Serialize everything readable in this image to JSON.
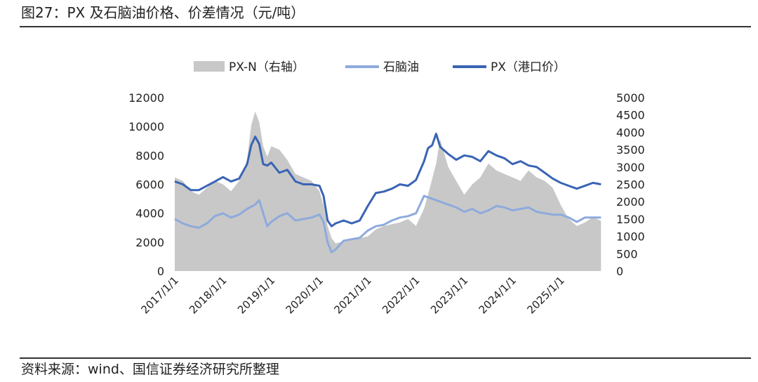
{
  "figure_title": "图27：PX 及石脑油价格、价差情况（元/吨）",
  "source_note": "资料来源：wind、国信证券经济研究所整理",
  "chart_data": {
    "type": "line",
    "title": "",
    "x_tick_labels": [
      "2017/1/1",
      "2018/1/1",
      "2019/1/1",
      "2020/1/1",
      "2021/1/1",
      "2022/1/1",
      "2023/1/1",
      "2024/1/1",
      "2025/1/1"
    ],
    "y_left": {
      "ticks": [
        0,
        2000,
        4000,
        6000,
        8000,
        10000,
        12000
      ],
      "labels": [
        "0",
        "2000",
        "4000",
        "6000",
        "8000",
        "10000",
        "12000"
      ],
      "ylim": [
        0,
        12000
      ]
    },
    "y_right": {
      "ticks": [
        0,
        500,
        1000,
        1500,
        2000,
        2500,
        3000,
        3500,
        4000,
        4500,
        5000
      ],
      "labels": [
        "0",
        "500",
        "1000",
        "1500",
        "2000",
        "2500",
        "3000",
        "3500",
        "4000",
        "4500",
        "5000"
      ],
      "ylim": [
        0,
        5000
      ]
    },
    "legend_position": "top",
    "grid": false,
    "colors": {
      "spread": "#c8c8c8",
      "naphtha": "#8eaadc",
      "px": "#3a64b4"
    },
    "series": [
      {
        "name": "PX-N（右轴）",
        "type": "area",
        "axis": "right",
        "x": [
          "2017-01",
          "2017-03",
          "2017-05",
          "2017-07",
          "2017-09",
          "2017-11",
          "2018-01",
          "2018-03",
          "2018-05",
          "2018-07",
          "2018-08",
          "2018-09",
          "2018-10",
          "2018-11",
          "2018-12",
          "2019-01",
          "2019-03",
          "2019-05",
          "2019-07",
          "2019-09",
          "2019-11",
          "2020-01",
          "2020-02",
          "2020-03",
          "2020-04",
          "2020-05",
          "2020-07",
          "2020-09",
          "2020-11",
          "2021-01",
          "2021-03",
          "2021-05",
          "2021-07",
          "2021-09",
          "2021-11",
          "2022-01",
          "2022-03",
          "2022-04",
          "2022-06",
          "2022-07",
          "2022-09",
          "2022-11",
          "2023-01",
          "2023-03",
          "2023-05",
          "2023-07",
          "2023-09",
          "2023-11",
          "2024-01",
          "2024-03",
          "2024-05",
          "2024-07",
          "2024-09",
          "2024-11",
          "2025-01",
          "2025-03",
          "2025-05",
          "2025-07",
          "2025-09",
          "2025-11"
        ],
        "values": [
          2700,
          2600,
          2300,
          2200,
          2400,
          2600,
          2500,
          2300,
          2600,
          3200,
          4200,
          4600,
          4300,
          3600,
          3300,
          3600,
          3500,
          3200,
          2800,
          2700,
          2600,
          2300,
          1900,
          1300,
          950,
          800,
          850,
          900,
          950,
          1000,
          1200,
          1300,
          1350,
          1400,
          1500,
          1300,
          1800,
          2200,
          3100,
          3800,
          3000,
          2600,
          2200,
          2500,
          2700,
          3100,
          2900,
          2800,
          2700,
          2600,
          2900,
          2700,
          2600,
          2400,
          1900,
          1500,
          1300,
          1400,
          1550,
          1450
        ]
      },
      {
        "name": "石脑油",
        "axis": "left",
        "x": [
          "2017-01",
          "2017-03",
          "2017-05",
          "2017-07",
          "2017-09",
          "2017-11",
          "2018-01",
          "2018-03",
          "2018-05",
          "2018-07",
          "2018-09",
          "2018-10",
          "2018-11",
          "2018-12",
          "2019-01",
          "2019-03",
          "2019-05",
          "2019-07",
          "2019-09",
          "2019-11",
          "2020-01",
          "2020-02",
          "2020-03",
          "2020-04",
          "2020-05",
          "2020-07",
          "2020-09",
          "2020-11",
          "2021-01",
          "2021-03",
          "2021-05",
          "2021-07",
          "2021-09",
          "2021-11",
          "2022-01",
          "2022-03",
          "2022-05",
          "2022-06",
          "2022-07",
          "2022-09",
          "2022-11",
          "2023-01",
          "2023-03",
          "2023-05",
          "2023-07",
          "2023-09",
          "2023-11",
          "2024-01",
          "2024-03",
          "2024-05",
          "2024-07",
          "2024-09",
          "2024-11",
          "2025-01",
          "2025-03",
          "2025-05",
          "2025-07",
          "2025-09",
          "2025-11"
        ],
        "values": [
          3600,
          3300,
          3100,
          3000,
          3300,
          3800,
          4000,
          3700,
          3900,
          4300,
          4600,
          4900,
          4000,
          3100,
          3400,
          3800,
          4000,
          3500,
          3600,
          3700,
          3900,
          3400,
          2000,
          1300,
          1500,
          2100,
          2200,
          2300,
          2800,
          3100,
          3200,
          3500,
          3700,
          3800,
          4000,
          5200,
          5000,
          4900,
          4800,
          4600,
          4400,
          4100,
          4300,
          4000,
          4200,
          4500,
          4400,
          4200,
          4300,
          4400,
          4100,
          4000,
          3900,
          3900,
          3700,
          3400,
          3700,
          3700,
          3700
        ]
      },
      {
        "name": "PX（港口价）",
        "axis": "left",
        "x": [
          "2017-01",
          "2017-03",
          "2017-05",
          "2017-07",
          "2017-09",
          "2017-11",
          "2018-01",
          "2018-03",
          "2018-05",
          "2018-07",
          "2018-08",
          "2018-09",
          "2018-10",
          "2018-11",
          "2018-12",
          "2019-01",
          "2019-03",
          "2019-05",
          "2019-07",
          "2019-09",
          "2019-11",
          "2020-01",
          "2020-02",
          "2020-03",
          "2020-04",
          "2020-05",
          "2020-07",
          "2020-09",
          "2020-11",
          "2021-01",
          "2021-03",
          "2021-05",
          "2021-07",
          "2021-09",
          "2021-11",
          "2022-01",
          "2022-03",
          "2022-04",
          "2022-05",
          "2022-06",
          "2022-07",
          "2022-09",
          "2022-11",
          "2023-01",
          "2023-03",
          "2023-05",
          "2023-07",
          "2023-09",
          "2023-11",
          "2024-01",
          "2024-03",
          "2024-05",
          "2024-07",
          "2024-09",
          "2024-11",
          "2025-01",
          "2025-03",
          "2025-05",
          "2025-07",
          "2025-09",
          "2025-11"
        ],
        "values": [
          6200,
          6000,
          5600,
          5600,
          5900,
          6200,
          6500,
          6200,
          6400,
          7400,
          8700,
          9300,
          8800,
          7400,
          7300,
          7500,
          6800,
          7000,
          6200,
          6000,
          6000,
          5900,
          5200,
          3500,
          3100,
          3300,
          3500,
          3300,
          3500,
          4500,
          5400,
          5500,
          5700,
          6000,
          5900,
          6300,
          7600,
          8500,
          8700,
          9500,
          8600,
          8100,
          7700,
          8000,
          7900,
          7600,
          8300,
          8000,
          7800,
          7400,
          7600,
          7300,
          7200,
          6800,
          6400,
          6100,
          5900,
          5700,
          5900,
          6100,
          6000
        ]
      }
    ]
  },
  "legend": {
    "spread_label": "PX-N（右轴）",
    "naphtha_label": "石脑油",
    "px_label": "PX（港口价）"
  }
}
